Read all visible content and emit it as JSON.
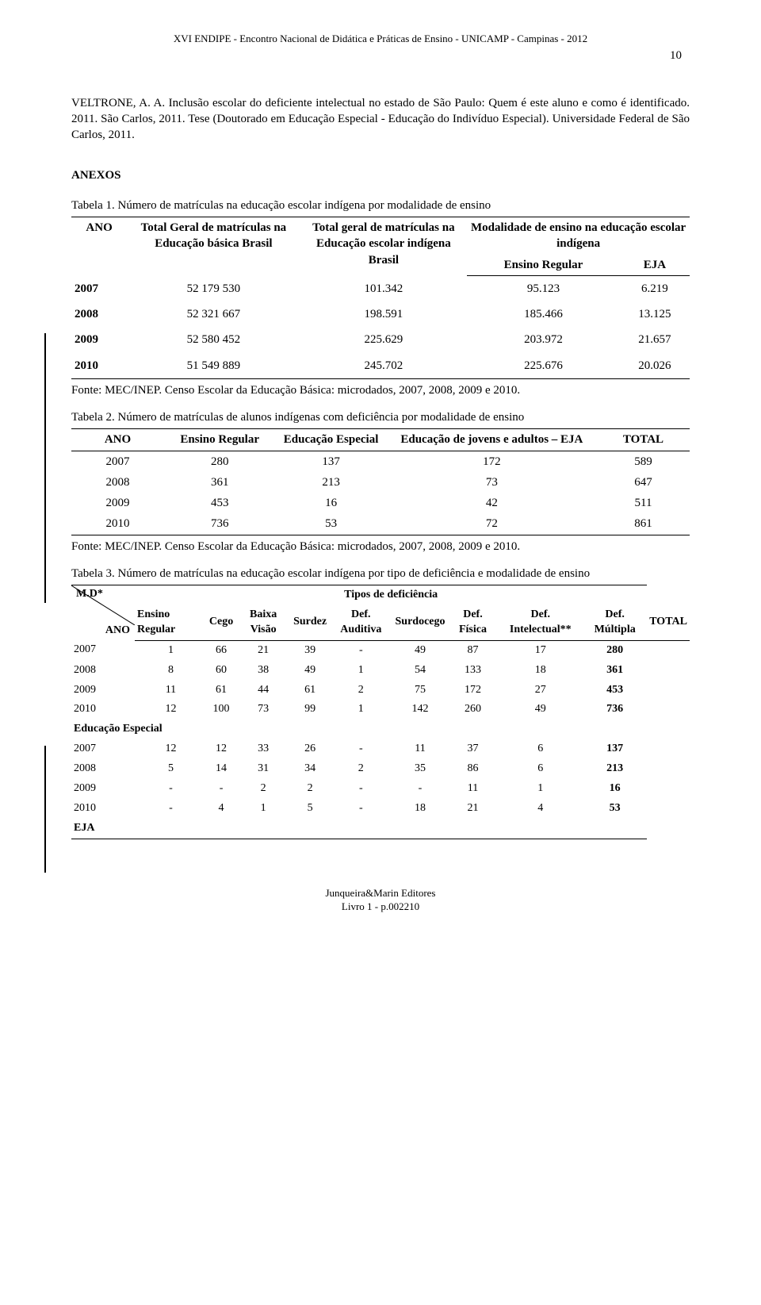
{
  "header": "XVI ENDIPE - Encontro Nacional de Didática e Práticas de Ensino - UNICAMP - Campinas - 2012",
  "page_number": "10",
  "reference": "VELTRONE, A. A. Inclusão escolar do deficiente intelectual no estado de São Paulo: Quem é este aluno e como é identificado. 2011. São Carlos, 2011. Tese (Doutorado em Educação Especial - Educação do Indivíduo Especial). Universidade Federal de São Carlos, 2011.",
  "anexos": "ANEXOS",
  "table1": {
    "caption": "Tabela 1. Número de matrículas na educação escolar indígena por modalidade de ensino",
    "head_ano": "ANO",
    "head_total_geral": "Total Geral de matrículas na Educação básica Brasil",
    "head_total_ind": "Total geral de matrículas na Educação escolar indígena Brasil",
    "head_modalidade": "Modalidade de ensino na educação escolar indígena",
    "head_ensino_regular": "Ensino Regular",
    "head_eja": "EJA",
    "rows": [
      {
        "ano": "2007",
        "geral": "52 179 530",
        "ind": "101.342",
        "er": "95.123",
        "eja": "6.219"
      },
      {
        "ano": "2008",
        "geral": "52 321 667",
        "ind": "198.591",
        "er": "185.466",
        "eja": "13.125"
      },
      {
        "ano": "2009",
        "geral": "52 580 452",
        "ind": "225.629",
        "er": "203.972",
        "eja": "21.657"
      },
      {
        "ano": "2010",
        "geral": "51 549 889",
        "ind": "245.702",
        "er": "225.676",
        "eja": "20.026"
      }
    ],
    "fonte": "Fonte: MEC/INEP. Censo Escolar da Educação Básica: microdados, 2007, 2008, 2009 e 2010."
  },
  "table2": {
    "caption": "Tabela 2. Número de matrículas de alunos indígenas com deficiência por modalidade de ensino",
    "head_ano": "ANO",
    "head_er": "Ensino Regular",
    "head_ee": "Educação Especial",
    "head_eja": "Educação de jovens e adultos – EJA",
    "head_total": "TOTAL",
    "rows": [
      {
        "ano": "2007",
        "er": "280",
        "ee": "137",
        "eja": "172",
        "t": "589"
      },
      {
        "ano": "2008",
        "er": "361",
        "ee": "213",
        "eja": "73",
        "t": "647"
      },
      {
        "ano": "2009",
        "er": "453",
        "ee": "16",
        "eja": "42",
        "t": "511"
      },
      {
        "ano": "2010",
        "er": "736",
        "ee": "53",
        "eja": "72",
        "t": "861"
      }
    ],
    "fonte": "Fonte: MEC/INEP. Censo Escolar da Educação Básica: microdados, 2007, 2008, 2009 e 2010."
  },
  "table3": {
    "caption": "Tabela 3. Número de matrículas na educação escolar indígena por tipo de deficiência e modalidade de ensino",
    "diag_md": "M.D*",
    "diag_ano": "ANO",
    "tipos": "Tipos de deficiência",
    "cols": [
      "Ensino Regular",
      "Cego",
      "Baixa Visão",
      "Surdez",
      "Def. Auditiva",
      "Surdocego",
      "Def. Física",
      "Def. Intelectual**",
      "Def. Múltipla",
      "TOTAL"
    ],
    "er_rows": [
      {
        "c": [
          "2007",
          "1",
          "66",
          "21",
          "39",
          "-",
          "49",
          "87",
          "17",
          "280"
        ]
      },
      {
        "c": [
          "2008",
          "8",
          "60",
          "38",
          "49",
          "1",
          "54",
          "133",
          "18",
          "361"
        ]
      },
      {
        "c": [
          "2009",
          "11",
          "61",
          "44",
          "61",
          "2",
          "75",
          "172",
          "27",
          "453"
        ]
      },
      {
        "c": [
          "2010",
          "12",
          "100",
          "73",
          "99",
          "1",
          "142",
          "260",
          "49",
          "736"
        ]
      }
    ],
    "ee_label": "Educação Especial",
    "ee_rows": [
      {
        "c": [
          "2007",
          "12",
          "12",
          "33",
          "26",
          "-",
          "11",
          "37",
          "6",
          "137"
        ]
      },
      {
        "c": [
          "2008",
          "5",
          "14",
          "31",
          "34",
          "2",
          "35",
          "86",
          "6",
          "213"
        ]
      },
      {
        "c": [
          "2009",
          "-",
          "-",
          "2",
          "2",
          "-",
          "-",
          "11",
          "1",
          "16"
        ]
      },
      {
        "c": [
          "2010",
          "-",
          "4",
          "1",
          "5",
          "-",
          "18",
          "21",
          "4",
          "53"
        ]
      }
    ],
    "eja_label": "EJA"
  },
  "footer1": "Junqueira&Marin Editores",
  "footer2": "Livro 1 - p.002210"
}
